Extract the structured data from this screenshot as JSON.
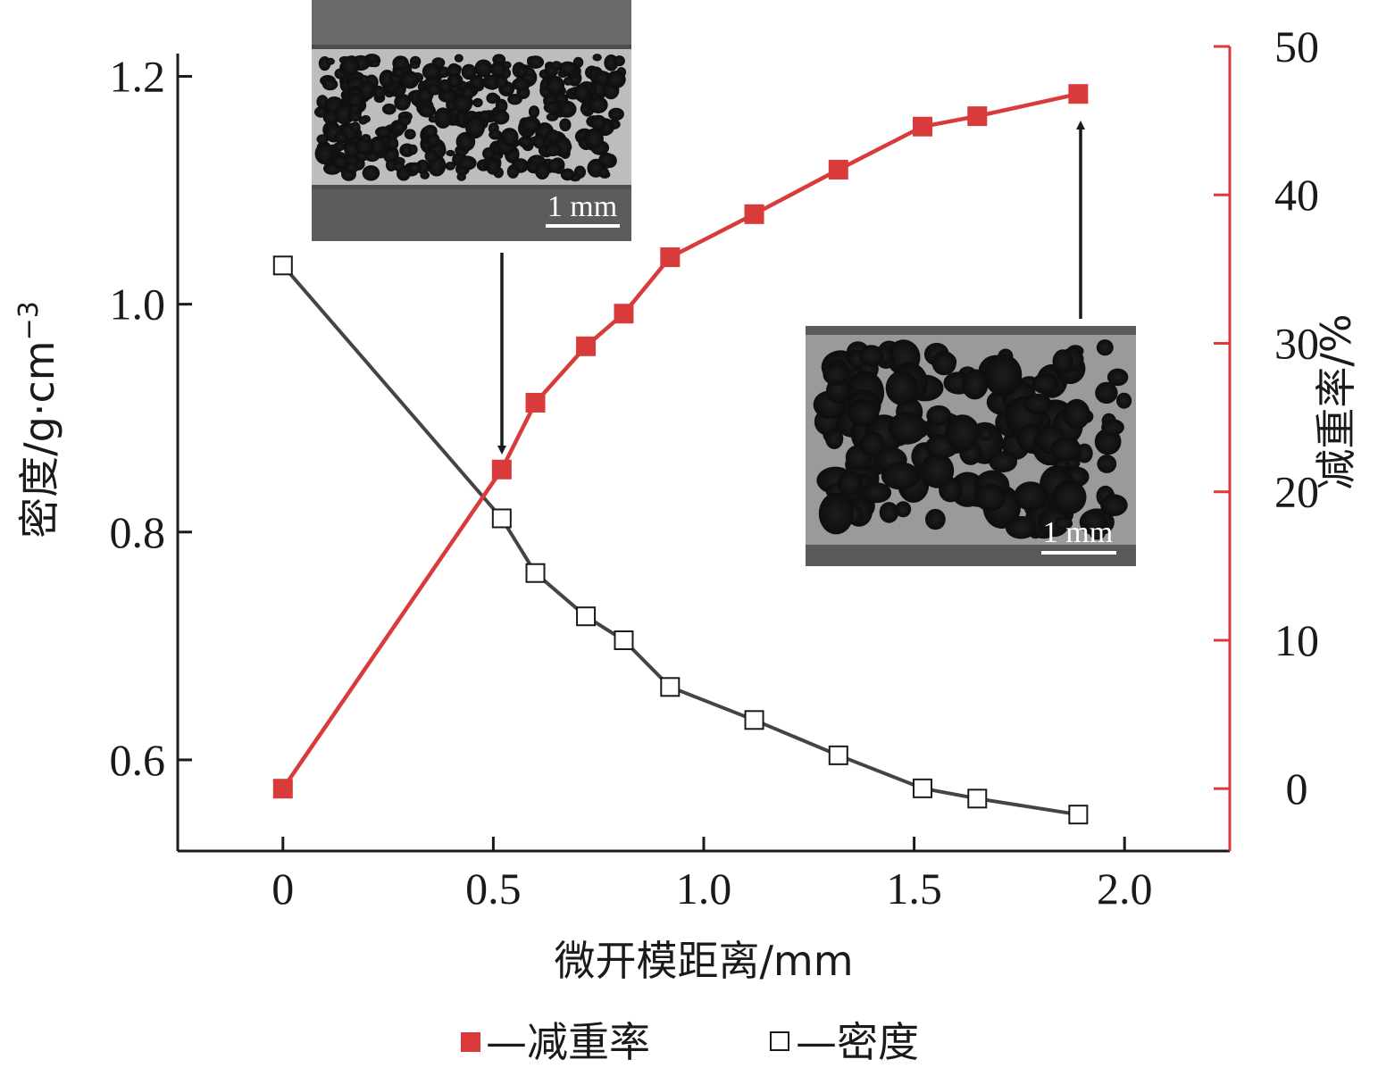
{
  "chart_data": {
    "type": "line",
    "xlabel": "微开模距离/mm",
    "ylabel_left": "密度/g·cm",
    "ylabel_left_sup": "−3",
    "ylabel_right": "减重率/%",
    "xlim": [
      -0.25,
      2.25
    ],
    "ylim_left": [
      0.52,
      1.22
    ],
    "ylim_right": [
      -4.2,
      50
    ],
    "x_ticks": [
      0,
      0.5,
      1.0,
      1.5,
      2.0
    ],
    "x_tick_labels": [
      "0",
      "0.5",
      "1.0",
      "1.5",
      "2.0"
    ],
    "y_left_ticks": [
      0.6,
      0.8,
      1.0,
      1.2
    ],
    "y_left_tick_labels": [
      "0.6",
      "0.8",
      "1.0",
      "1.2"
    ],
    "y_right_ticks": [
      0,
      10,
      20,
      30,
      40,
      50
    ],
    "y_right_tick_labels": [
      "0",
      "10",
      "20",
      "30",
      "40",
      "50"
    ],
    "grid": false,
    "legend_position": "bottom-center",
    "series": [
      {
        "name": "减重率",
        "axis": "right",
        "marker": "filled-square",
        "color": "#d93a3a",
        "x": [
          0,
          0.52,
          0.6,
          0.72,
          0.81,
          0.92,
          1.12,
          1.32,
          1.52,
          1.65,
          1.89
        ],
        "y": [
          0,
          21.5,
          26.0,
          29.8,
          32.0,
          35.8,
          38.7,
          41.7,
          44.6,
          45.3,
          46.8
        ]
      },
      {
        "name": "密度",
        "axis": "left",
        "marker": "open-square",
        "color": "#444444",
        "x": [
          0,
          0.52,
          0.6,
          0.72,
          0.81,
          0.92,
          1.12,
          1.32,
          1.52,
          1.65,
          1.89
        ],
        "y": [
          1.034,
          0.812,
          0.764,
          0.726,
          0.705,
          0.664,
          0.635,
          0.604,
          0.575,
          0.566,
          0.552
        ]
      }
    ],
    "legend": [
      {
        "marker": "filled-square",
        "label": "—减重率"
      },
      {
        "marker": "open-square",
        "label": "—密度"
      }
    ],
    "annotations": {
      "insets": [
        {
          "scale_label": "1 mm",
          "points_to_x": 0.52,
          "points_to_series": "减重率"
        },
        {
          "scale_label": "1 mm",
          "points_to_x": 1.89,
          "points_to_series": "减重率"
        }
      ]
    },
    "colors": {
      "left_axis": "#1a1a1a",
      "right_axis": "#d93a3a",
      "weight_loss": "#d93a3a",
      "density": "#444444"
    }
  }
}
